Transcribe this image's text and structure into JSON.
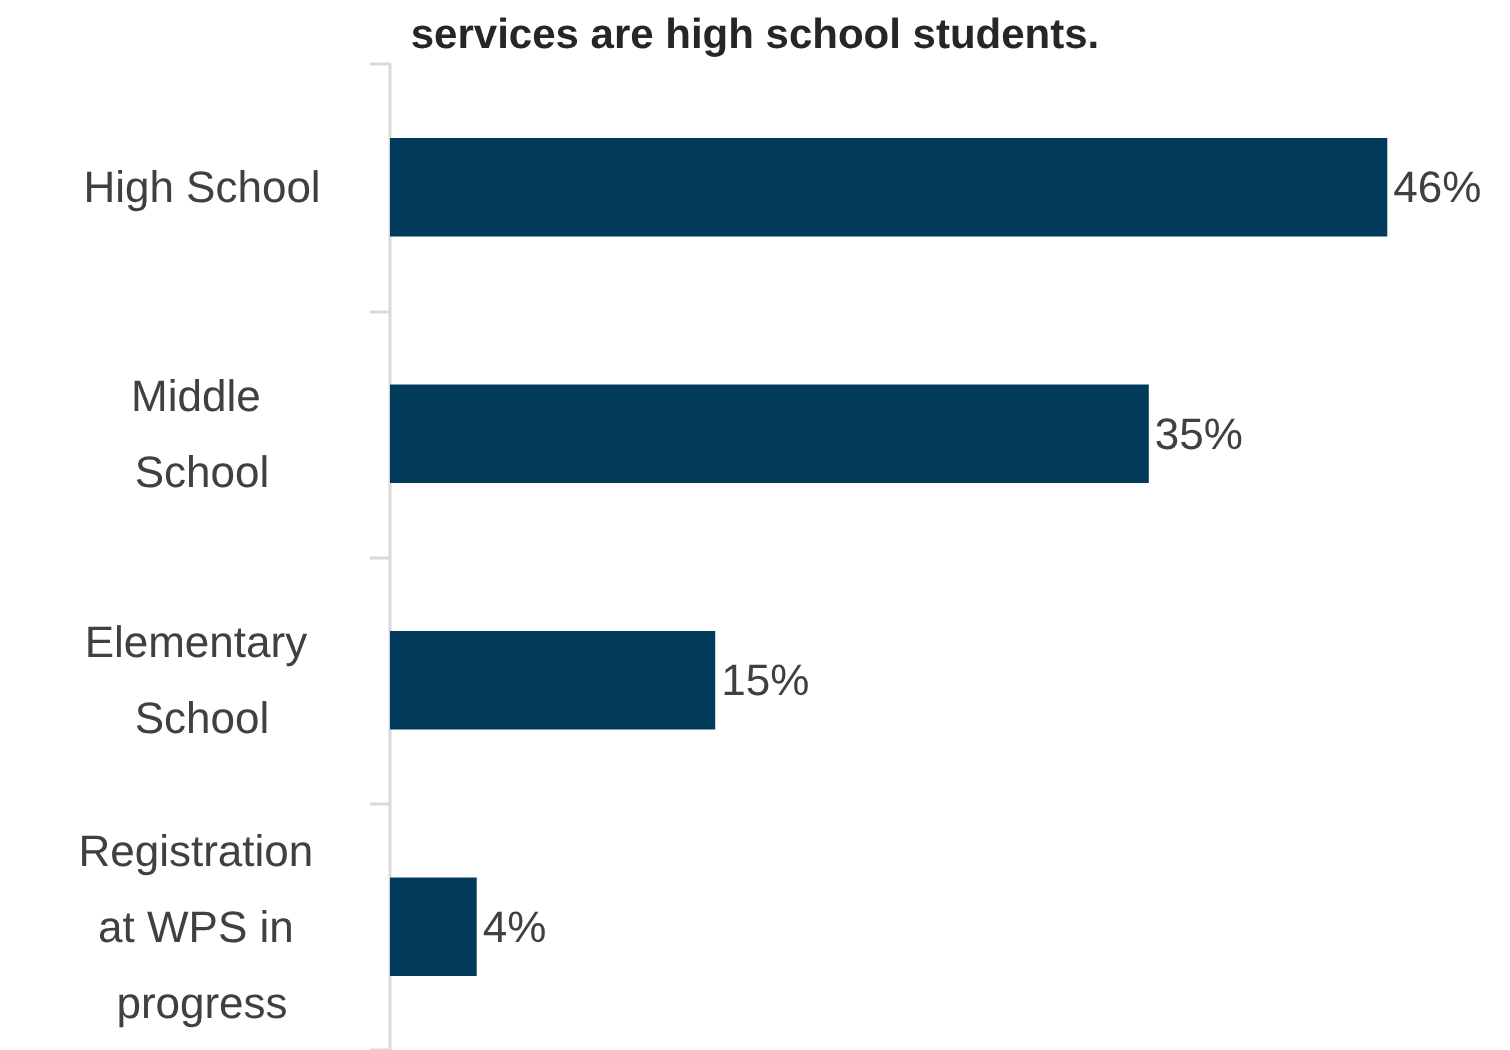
{
  "chart_data": {
    "type": "bar",
    "orientation": "horizontal",
    "title": "services are high school students.",
    "categories": [
      "High School",
      "Middle School",
      "Elementary School",
      "Registration at WPS in progress"
    ],
    "values": [
      46,
      35,
      15,
      4
    ],
    "color": "#023a5c",
    "value_labels": [
      "46%",
      "35%",
      "15%",
      "4%"
    ]
  }
}
